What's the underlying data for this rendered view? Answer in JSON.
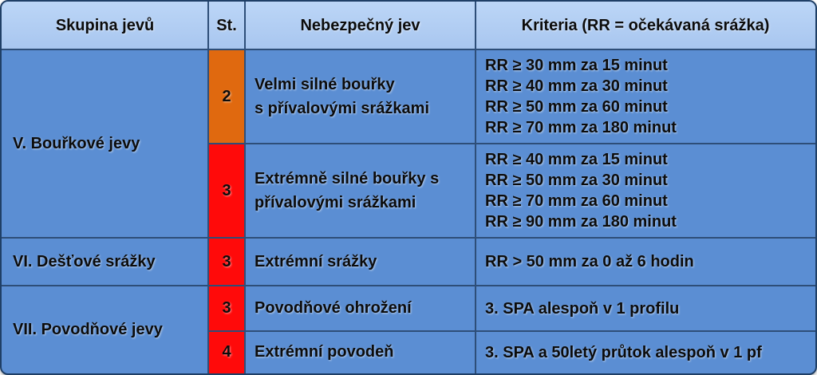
{
  "header": {
    "col_group": "Skupina jevů",
    "col_level": "St.",
    "col_phenomenon": "Nebezpečný jev",
    "col_criteria": "Kriteria (RR = očekávaná srážka)"
  },
  "groups": {
    "storms": "V. Bouřkové jevy",
    "rain": "VI. Dešťové srážky",
    "flood": "VII. Povodňové jevy"
  },
  "rows": [
    {
      "level": "2",
      "level_color": "#e0690f",
      "phenomenon_line1": "Velmi silné bouřky",
      "phenomenon_line2": "s přívalovými srážkami",
      "criteria": [
        "RR ≥ 30 mm za 15 minut",
        "RR ≥ 40 mm za 30 minut",
        "RR ≥ 50 mm za 60 minut",
        "RR ≥ 70 mm za 180 minut"
      ]
    },
    {
      "level": "3",
      "level_color": "#ff0a0a",
      "phenomenon_line1": "Extrémně silné bouřky s",
      "phenomenon_line2": "přívalovými srážkami",
      "criteria": [
        "RR ≥ 40 mm za 15 minut",
        "RR ≥ 50 mm za 30 minut",
        "RR ≥ 70 mm za 60 minut",
        "RR ≥ 90 mm za 180 minut"
      ]
    },
    {
      "level": "3",
      "level_color": "#ff0a0a",
      "phenomenon_line1": "Extrémní srážky",
      "criteria": [
        "RR > 50 mm za 0 až 6 hodin"
      ]
    },
    {
      "level": "3",
      "level_color": "#ff0a0a",
      "phenomenon_line1": "Povodňové ohrožení",
      "criteria": [
        "3. SPA alespoň v 1 profilu"
      ]
    },
    {
      "level": "4",
      "level_color": "#ff0a0a",
      "phenomenon_line1": "Extrémní povodeň",
      "criteria": [
        "3. SPA a 50letý průtok alespoň v 1 pf"
      ]
    }
  ]
}
